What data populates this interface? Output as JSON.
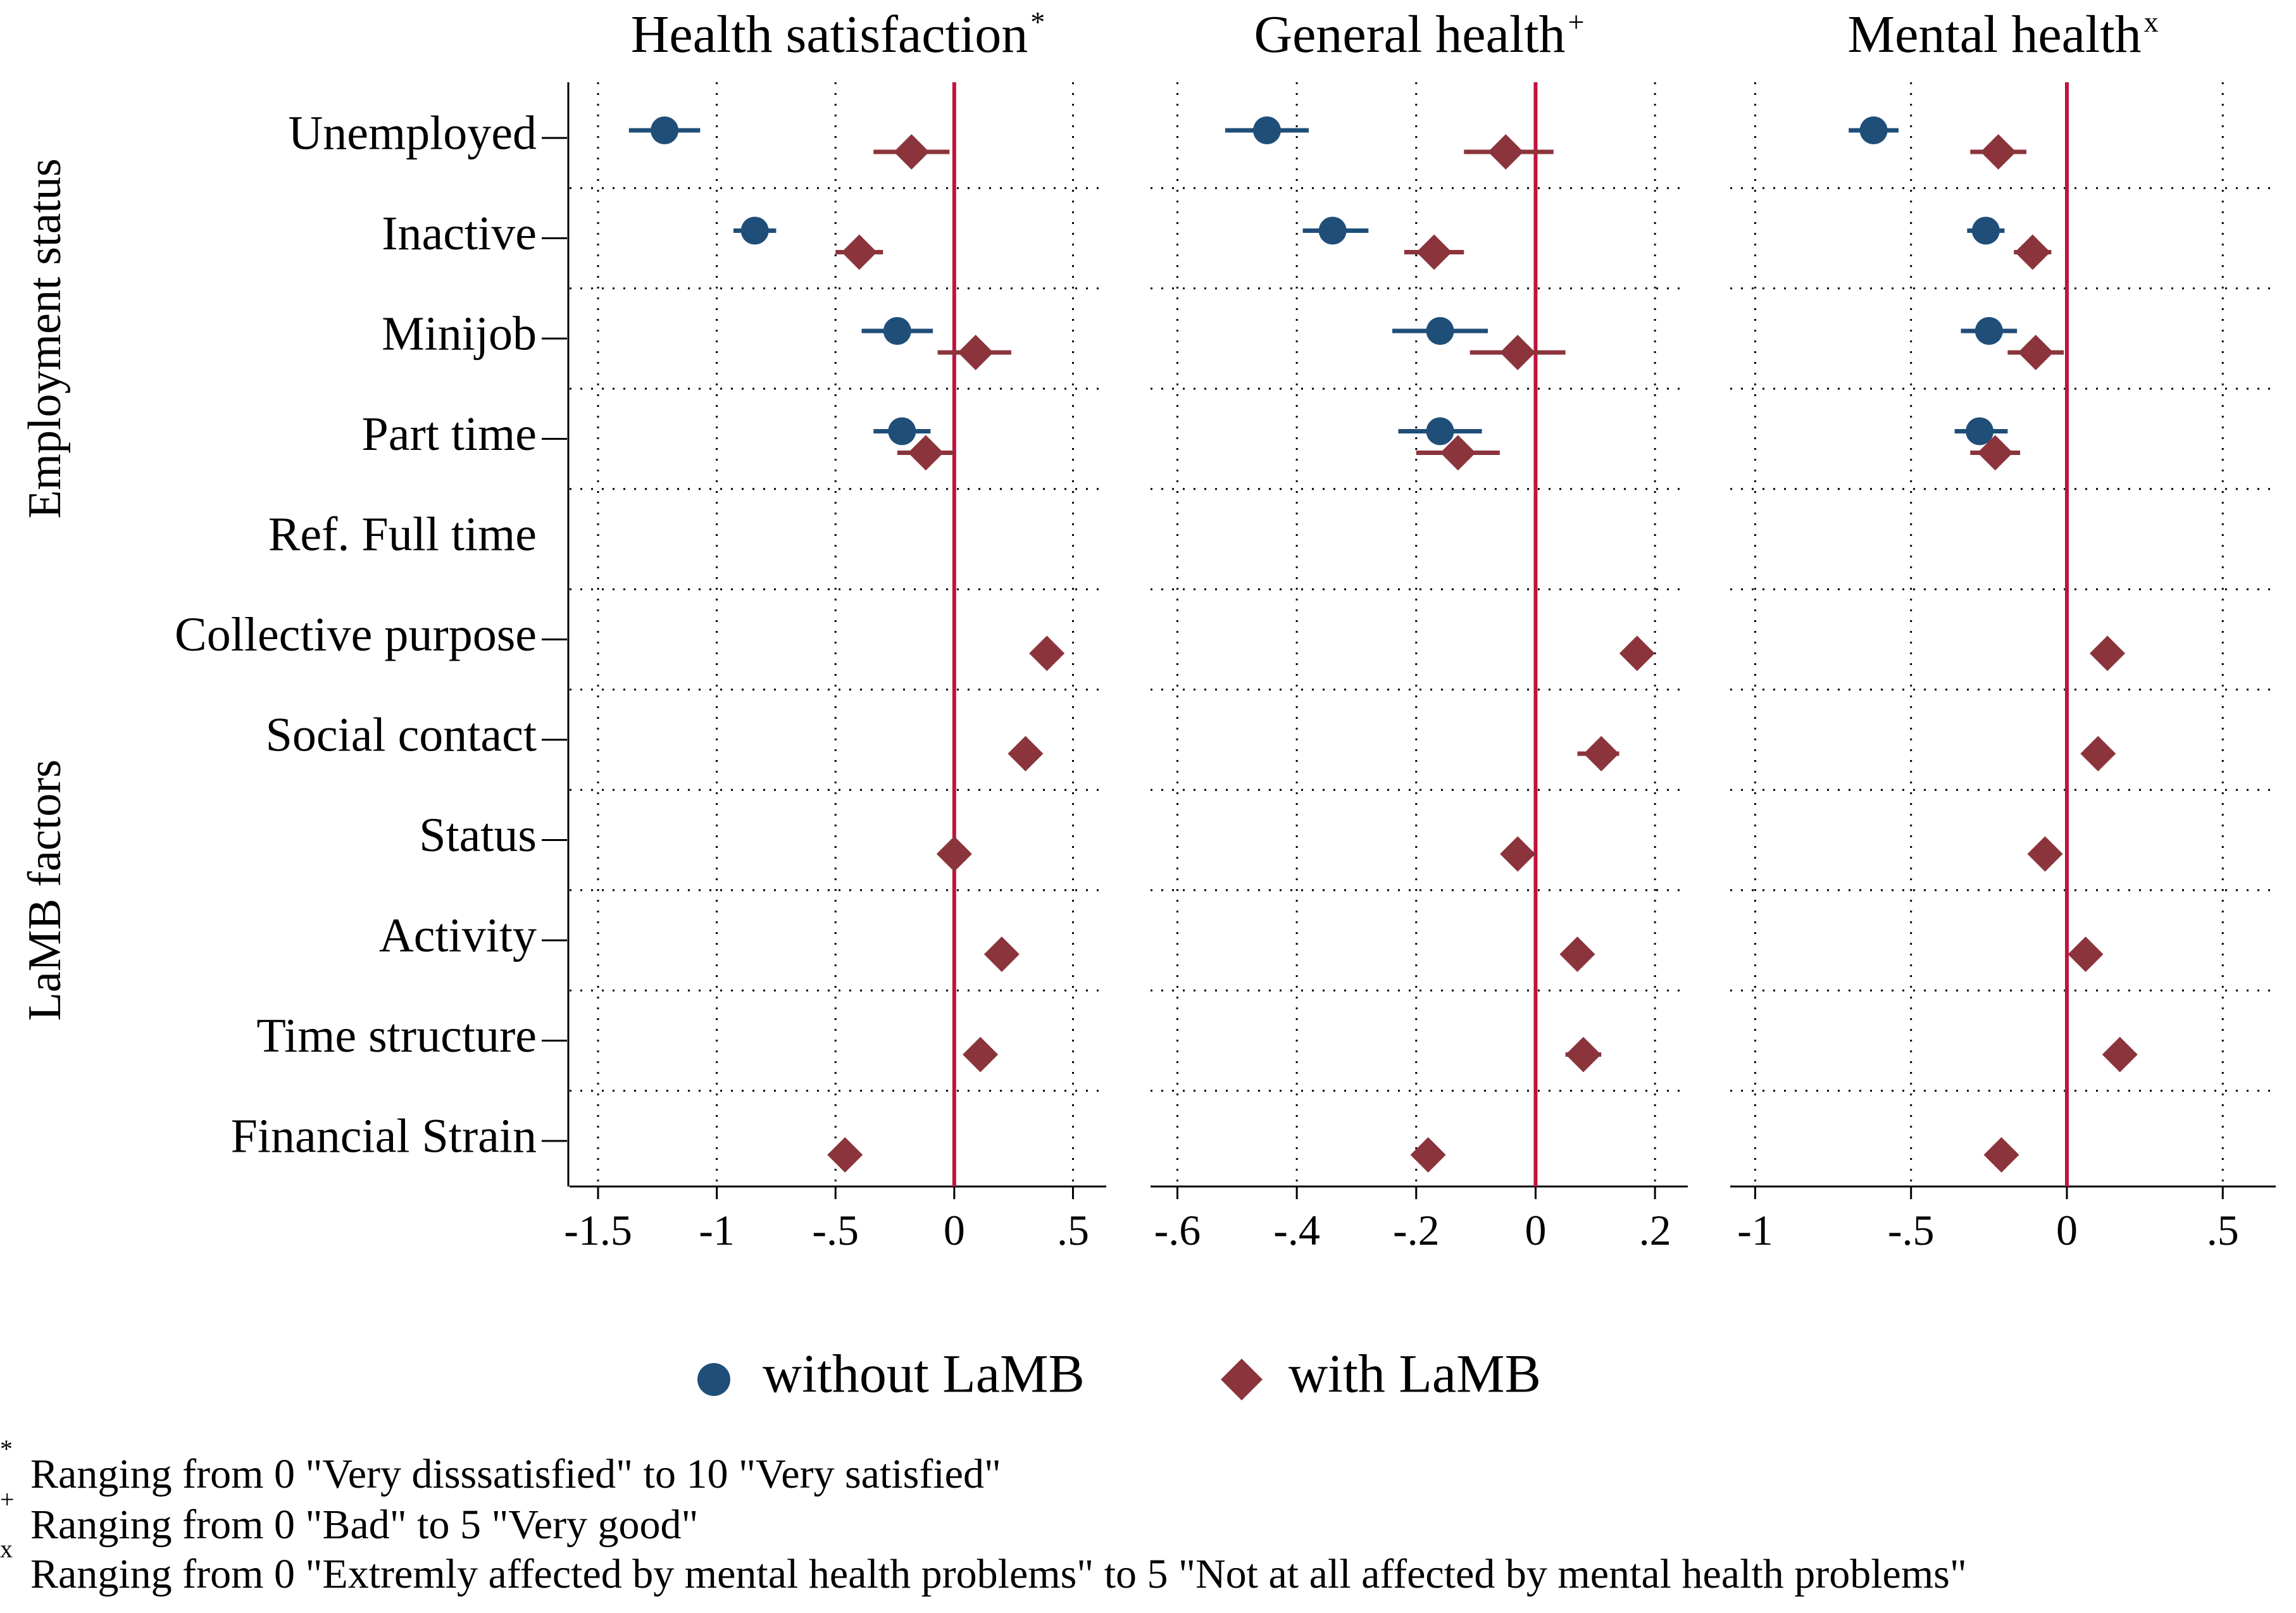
{
  "chart_data": {
    "type": "coefficient-plot",
    "legend": {
      "position": "bottom",
      "entries": [
        {
          "name": "without LaMB",
          "marker": "circle",
          "color": "#1f4e79"
        },
        {
          "name": "with LaMB",
          "marker": "diamond",
          "color": "#8b343c"
        }
      ]
    },
    "colors": {
      "without": "#1f4e79",
      "with": "#8b343c",
      "reference_line": "#c0143c"
    },
    "rows": [
      "Unemployed",
      "Inactive",
      "Minijob",
      "Part time",
      "Ref. Full time",
      "Collective purpose",
      "Social contact",
      "Status",
      "Activity",
      "Time structure",
      "Financial Strain"
    ],
    "groups": [
      {
        "label": "Employment status",
        "first_row": 0,
        "last_row": 4
      },
      {
        "label": "LaMB factors",
        "first_row": 5,
        "last_row": 10
      }
    ],
    "panels": [
      {
        "title": "Health satisfaction",
        "title_sup": "*",
        "xlim": [
          -1.62,
          0.64
        ],
        "xticks": [
          -1.5,
          -1,
          -0.5,
          0,
          0.5
        ],
        "xtick_labels": [
          "-1.5",
          "-1",
          "-.5",
          "0",
          ".5"
        ],
        "series": [
          {
            "name": "without LaMB",
            "points": [
              {
                "row": 0,
                "est": -1.22,
                "lo": -1.37,
                "hi": -1.07
              },
              {
                "row": 1,
                "est": -0.84,
                "lo": -0.93,
                "hi": -0.75
              },
              {
                "row": 2,
                "est": -0.24,
                "lo": -0.39,
                "hi": -0.09
              },
              {
                "row": 3,
                "est": -0.22,
                "lo": -0.34,
                "hi": -0.1
              }
            ]
          },
          {
            "name": "with LaMB",
            "points": [
              {
                "row": 0,
                "est": -0.18,
                "lo": -0.34,
                "hi": -0.02
              },
              {
                "row": 1,
                "est": -0.4,
                "lo": -0.5,
                "hi": -0.3
              },
              {
                "row": 2,
                "est": 0.09,
                "lo": -0.07,
                "hi": 0.24
              },
              {
                "row": 3,
                "est": -0.12,
                "lo": -0.24,
                "hi": 0.0
              },
              {
                "row": 5,
                "est": 0.39,
                "lo": 0.35,
                "hi": 0.43
              },
              {
                "row": 6,
                "est": 0.3,
                "lo": 0.26,
                "hi": 0.34
              },
              {
                "row": 7,
                "est": 0.0,
                "lo": -0.03,
                "hi": 0.03
              },
              {
                "row": 8,
                "est": 0.2,
                "lo": 0.17,
                "hi": 0.23
              },
              {
                "row": 9,
                "est": 0.11,
                "lo": 0.07,
                "hi": 0.15
              },
              {
                "row": 10,
                "est": -0.46,
                "lo": -0.49,
                "hi": -0.43
              }
            ]
          }
        ]
      },
      {
        "title": "General health",
        "title_sup": "+",
        "xlim": [
          -0.645,
          0.255
        ],
        "xticks": [
          -0.6,
          -0.4,
          -0.2,
          0,
          0.2
        ],
        "xtick_labels": [
          "-.6",
          "-.4",
          "-.2",
          "0",
          ".2"
        ],
        "series": [
          {
            "name": "without LaMB",
            "points": [
              {
                "row": 0,
                "est": -0.45,
                "lo": -0.52,
                "hi": -0.38
              },
              {
                "row": 1,
                "est": -0.34,
                "lo": -0.39,
                "hi": -0.28
              },
              {
                "row": 2,
                "est": -0.16,
                "lo": -0.24,
                "hi": -0.08
              },
              {
                "row": 3,
                "est": -0.16,
                "lo": -0.23,
                "hi": -0.09
              }
            ]
          },
          {
            "name": "with LaMB",
            "points": [
              {
                "row": 0,
                "est": -0.05,
                "lo": -0.12,
                "hi": 0.03
              },
              {
                "row": 1,
                "est": -0.17,
                "lo": -0.22,
                "hi": -0.12
              },
              {
                "row": 2,
                "est": -0.03,
                "lo": -0.11,
                "hi": 0.05
              },
              {
                "row": 3,
                "est": -0.13,
                "lo": -0.2,
                "hi": -0.06
              },
              {
                "row": 5,
                "est": 0.17,
                "lo": 0.15,
                "hi": 0.19
              },
              {
                "row": 6,
                "est": 0.11,
                "lo": 0.07,
                "hi": 0.14
              },
              {
                "row": 7,
                "est": -0.03,
                "lo": -0.05,
                "hi": 0.0
              },
              {
                "row": 8,
                "est": 0.07,
                "lo": 0.05,
                "hi": 0.09
              },
              {
                "row": 9,
                "est": 0.08,
                "lo": 0.05,
                "hi": 0.11
              },
              {
                "row": 10,
                "est": -0.18,
                "lo": -0.2,
                "hi": -0.16
              }
            ]
          }
        ]
      },
      {
        "title": "Mental health",
        "title_sup": "x",
        "xlim": [
          -1.08,
          0.67
        ],
        "xticks": [
          -1,
          -0.5,
          0,
          0.5
        ],
        "xtick_labels": [
          "-1",
          "-.5",
          "0",
          ".5"
        ],
        "series": [
          {
            "name": "without LaMB",
            "points": [
              {
                "row": 0,
                "est": -0.62,
                "lo": -0.7,
                "hi": -0.54
              },
              {
                "row": 1,
                "est": -0.26,
                "lo": -0.32,
                "hi": -0.2
              },
              {
                "row": 2,
                "est": -0.25,
                "lo": -0.34,
                "hi": -0.16
              },
              {
                "row": 3,
                "est": -0.28,
                "lo": -0.36,
                "hi": -0.19
              }
            ]
          },
          {
            "name": "with LaMB",
            "points": [
              {
                "row": 0,
                "est": -0.22,
                "lo": -0.31,
                "hi": -0.13
              },
              {
                "row": 1,
                "est": -0.11,
                "lo": -0.17,
                "hi": -0.05
              },
              {
                "row": 2,
                "est": -0.1,
                "lo": -0.19,
                "hi": -0.01
              },
              {
                "row": 3,
                "est": -0.23,
                "lo": -0.31,
                "hi": -0.15
              },
              {
                "row": 5,
                "est": 0.13,
                "lo": 0.1,
                "hi": 0.16
              },
              {
                "row": 6,
                "est": 0.1,
                "lo": 0.07,
                "hi": 0.13
              },
              {
                "row": 7,
                "est": -0.07,
                "lo": -0.1,
                "hi": -0.04
              },
              {
                "row": 8,
                "est": 0.06,
                "lo": 0.03,
                "hi": 0.09
              },
              {
                "row": 9,
                "est": 0.17,
                "lo": 0.14,
                "hi": 0.2
              },
              {
                "row": 10,
                "est": -0.21,
                "lo": -0.24,
                "hi": -0.18
              }
            ]
          }
        ]
      }
    ]
  },
  "footnotes": [
    {
      "mark": "*",
      "text": "Ranging from 0 \"Very disssatisfied\" to 10 \"Very satisfied\""
    },
    {
      "mark": "+",
      "text": "Ranging from 0 \"Bad\" to 5 \"Very good\""
    },
    {
      "mark": "x",
      "text": "Ranging from 0 \"Extremly affected by mental health problems\" to 5 \"Not at all affected by mental health problems\""
    }
  ]
}
